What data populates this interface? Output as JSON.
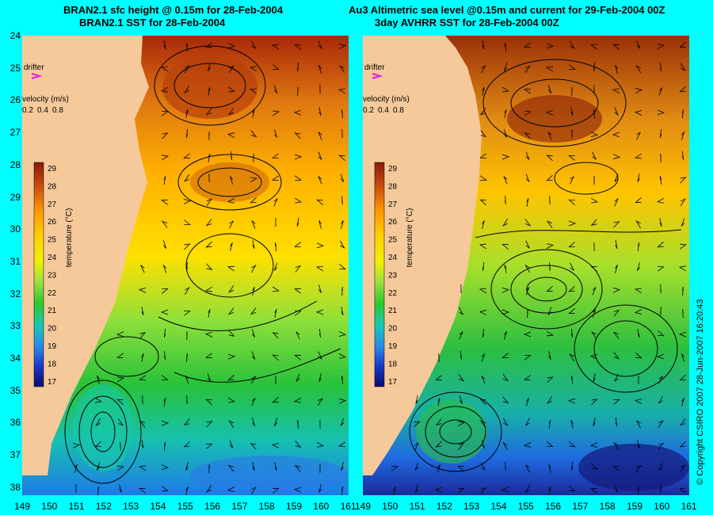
{
  "titles": {
    "left_line1": "BRAN2.1 sfc height @ 0.15m for 28-Feb-2004",
    "left_line2": "BRAN2.1 SST for 28-Feb-2004",
    "right_line1": "Au3 Altimetric sea level  @0.15m and current for 29-Feb-2004 00Z",
    "right_line2": "3day AVHRR SST for 28-Feb-2004 00Z"
  },
  "copyright": "© Copyright CSIRO 2007   28-Jun-2007 16:20:43",
  "legend": {
    "drifter_label": "drifter",
    "velocity_label": "velocity (m/s)",
    "velocity_scale": [
      "0.2",
      "0.4",
      "0.8"
    ],
    "colorbar_title": "temperature (°C)",
    "colorbar_ticks": [
      "29",
      "28",
      "27",
      "26",
      "25",
      "24",
      "23",
      "22",
      "21",
      "20",
      "19",
      "18",
      "17"
    ]
  },
  "axes": {
    "lat_labels": [
      "24",
      "25",
      "26",
      "27",
      "28",
      "29",
      "30",
      "31",
      "32",
      "33",
      "34",
      "35",
      "36",
      "37",
      "38"
    ],
    "lon_labels_left": [
      "149",
      "150",
      "151",
      "152",
      "153",
      "154",
      "155",
      "156",
      "157",
      "158",
      "159",
      "160",
      "161"
    ],
    "lon_labels_right": [
      "149",
      "150",
      "151",
      "152",
      "153",
      "154",
      "155",
      "156",
      "157",
      "158",
      "159",
      "160",
      "161"
    ]
  },
  "colors": {
    "background": "#00ffff",
    "land": "#f6c99a",
    "sst_warm": "#b8320a",
    "sst_mid": "#ffd100",
    "sst_cool": "#28c23a",
    "sst_cold": "#0d1a8a"
  }
}
